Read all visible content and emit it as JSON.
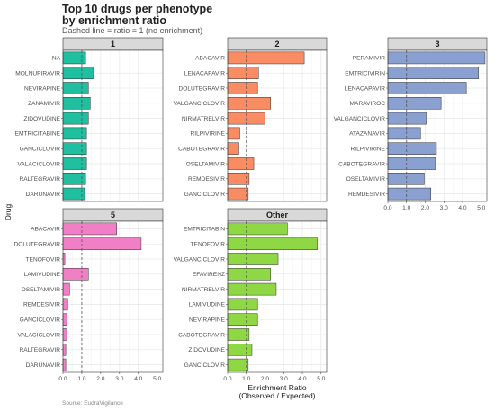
{
  "title_line1": "Top 10 drugs per phenotype",
  "title_line2": "by enrichment ratio",
  "subtitle": "Dashed line = ratio = 1 (no enrichment)",
  "caption": "Source: EudraVigilance",
  "chart_data": {
    "type": "bar",
    "orientation": "horizontal",
    "xlabel_line1": "Enrichment Ratio",
    "xlabel_line2": "(Observed / Expected)",
    "ylabel": "Drug",
    "xlim": [
      0,
      5.3
    ],
    "xticks": [
      "0.0",
      "1.0",
      "2.0",
      "3.0",
      "4.0",
      "5.0"
    ],
    "reference_line": 1,
    "grid": true,
    "facets": [
      {
        "name": "1",
        "color": "#1fbf9f",
        "categories": [
          "NA",
          "MOLNUPIRAVIR",
          "NEVIRAPINE",
          "ZANAMIVIR",
          "ZIDOVUDINE",
          "EMTRICITABINE",
          "GANCICLOVIR",
          "VALACICLOVIR",
          "RALTEGRAVIR",
          "DARUNAVIR"
        ],
        "values": [
          1.2,
          1.6,
          1.35,
          1.45,
          1.35,
          1.25,
          1.25,
          1.25,
          1.2,
          1.15
        ],
        "show_xticks": false
      },
      {
        "name": "2",
        "color": "#fa8c63",
        "categories": [
          "ABACAVIR",
          "LENACAPAVIR",
          "DOLUTEGRAVIR",
          "VALGANCICLOVIR",
          "NIRMATRELVIR",
          "RILPIVIRINE",
          "CABOTEGRAVIR",
          "OSELTAMIVIR",
          "REMDESIVIR",
          "GANCICLOVIR"
        ],
        "values": [
          4.1,
          1.65,
          1.6,
          2.3,
          2.0,
          0.65,
          0.6,
          1.4,
          1.15,
          1.1
        ],
        "show_xticks": false
      },
      {
        "name": "3",
        "color": "#8aa0d0",
        "categories": [
          "PERAMIVIR",
          "EMTRICIVIRIN",
          "LENACAPAVIR",
          "MARAVIROC",
          "VALGANCICLOVIR",
          "ATAZANAVIR",
          "RILPIVIRINE",
          "CABOTEGRAVIR",
          "OSELTAMIVIR",
          "REMDESIVIR"
        ],
        "values": [
          5.2,
          4.85,
          4.2,
          2.85,
          2.05,
          1.75,
          2.6,
          2.55,
          1.95,
          2.3
        ],
        "show_xticks": true
      },
      {
        "name": "5",
        "color": "#f17fc5",
        "categories": [
          "ABACAVIR",
          "DOLUTEGRAVIR",
          "TENOFOVIR",
          "LAMIVUDINE",
          "OSELTAMIVIR",
          "REMDESIVIR",
          "GANCICLOVIR",
          "VALACICLOVIR",
          "RALTEGRAVIR",
          "DARUNAVIR"
        ],
        "values": [
          2.85,
          4.15,
          0.1,
          1.35,
          0.35,
          0.25,
          0.2,
          0.2,
          0.15,
          0.15
        ],
        "show_xticks": true
      },
      {
        "name": "Other",
        "color": "#8fd744",
        "categories": [
          "EMTRICITABIN",
          "TENOFOVIR",
          "VALGANCICLOVIR",
          "EFAVIRENZ",
          "NIRMATRELVIR",
          "LAMIVUDINE",
          "NEVIRAPINE",
          "CABOTEGRAVIR",
          "ZIDOVUDINE",
          "GANCICLOVIR"
        ],
        "values": [
          3.2,
          4.8,
          2.7,
          2.3,
          2.6,
          1.6,
          1.6,
          1.15,
          1.3,
          1.1
        ],
        "show_xticks": true
      }
    ]
  }
}
